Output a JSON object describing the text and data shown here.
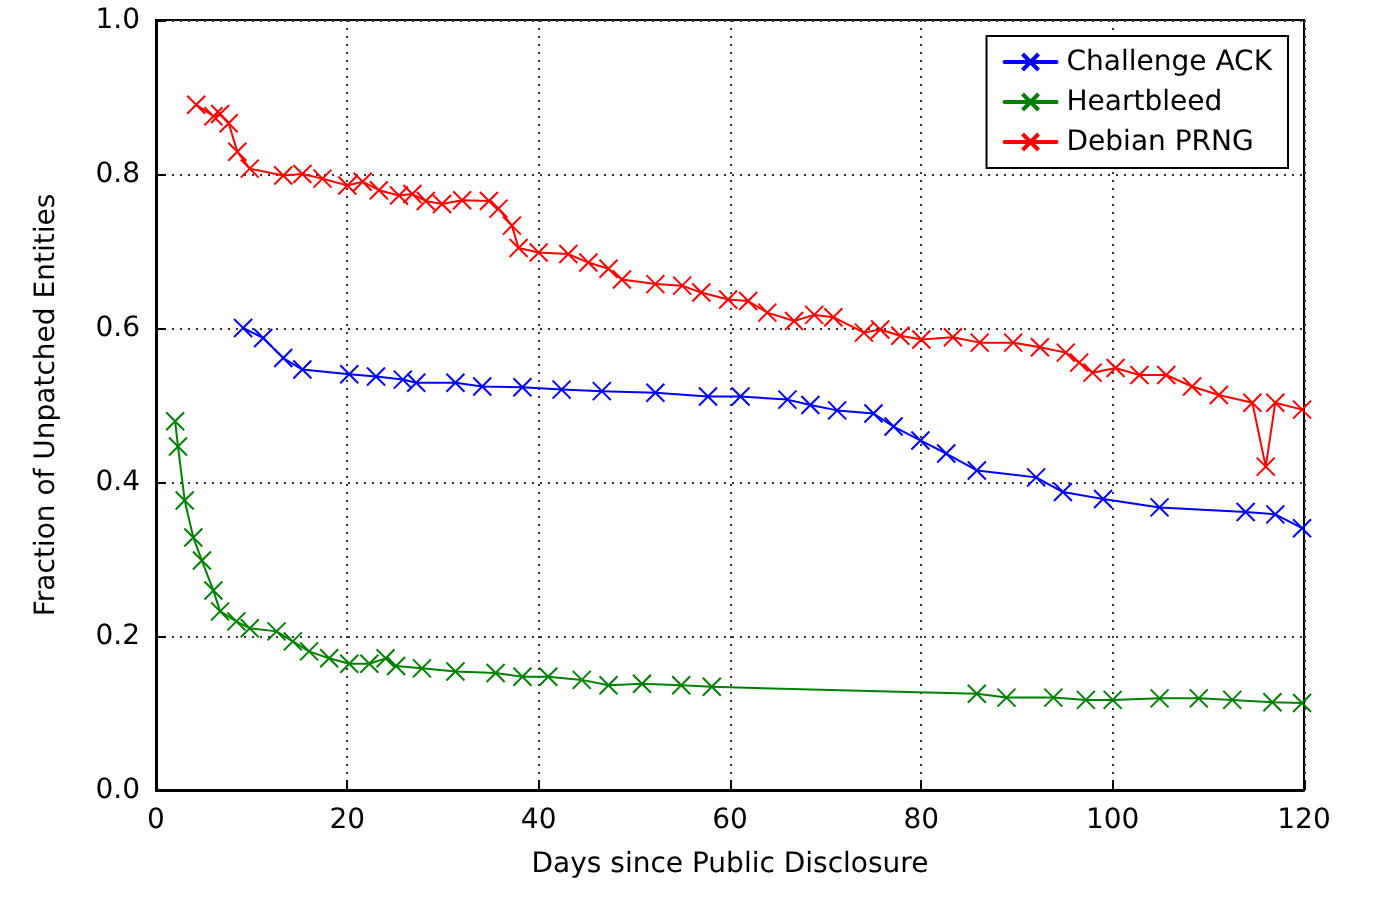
{
  "chart_data": {
    "type": "line",
    "xlabel": "Days since Public Disclosure",
    "ylabel": "Fraction of Unpatched Entities",
    "xlim": [
      0,
      120
    ],
    "xticks": [
      0,
      20,
      40,
      60,
      80,
      100,
      120
    ],
    "ylim": [
      0,
      1
    ],
    "yticks": [
      {
        "value": 0,
        "label": "0.0"
      },
      {
        "value": 0.2,
        "label": "0.2"
      },
      {
        "value": 0.4,
        "label": "0.4"
      },
      {
        "value": 0.6,
        "label": "0.6"
      },
      {
        "value": 0.8,
        "label": "0.8"
      },
      {
        "value": 1,
        "label": "1.0"
      }
    ],
    "grid": true,
    "legend": "top right",
    "line_style": "solid",
    "series": [
      {
        "name": "Challenge ACK",
        "color": "#0000ff",
        "marker": "cross",
        "x": [
          9.1,
          11.2,
          13.3,
          15.3,
          20.2,
          23,
          25.8,
          27.2,
          31.3,
          34.1,
          38.3,
          42.4,
          46.6,
          52.2,
          57.7,
          61.1,
          66,
          68.4,
          71.2,
          75,
          77.1,
          79.9,
          82.6,
          85.8,
          92,
          94.8,
          99,
          104.9,
          113.9,
          117,
          119.8
        ],
        "values": [
          0.6,
          0.587,
          0.561,
          0.546,
          0.54,
          0.537,
          0.533,
          0.529,
          0.529,
          0.524,
          0.523,
          0.52,
          0.518,
          0.516,
          0.511,
          0.511,
          0.507,
          0.5,
          0.493,
          0.489,
          0.472,
          0.454,
          0.437,
          0.415,
          0.406,
          0.387,
          0.378,
          0.367,
          0.361,
          0.358,
          0.34
        ]
      },
      {
        "name": "Heartbleed",
        "color": "#008000",
        "marker": "cross",
        "x": [
          2,
          2.3,
          3,
          3.9,
          4.8,
          6,
          6.7,
          8.4,
          9.8,
          12.6,
          14.3,
          16,
          18.1,
          20.2,
          22.3,
          24,
          25.1,
          27.8,
          31.3,
          35.5,
          38.3,
          41,
          44.5,
          47.3,
          50.8,
          54.9,
          58.1,
          85.8,
          88.9,
          93.8,
          97.2,
          100,
          104.9,
          109,
          112.5,
          116.7,
          119.8
        ],
        "values": [
          0.479,
          0.446,
          0.376,
          0.328,
          0.298,
          0.259,
          0.232,
          0.219,
          0.21,
          0.206,
          0.193,
          0.18,
          0.171,
          0.164,
          0.164,
          0.171,
          0.161,
          0.158,
          0.154,
          0.152,
          0.147,
          0.147,
          0.143,
          0.136,
          0.138,
          0.136,
          0.134,
          0.125,
          0.12,
          0.12,
          0.117,
          0.117,
          0.119,
          0.119,
          0.117,
          0.114,
          0.113
        ]
      },
      {
        "name": "Debian PRNG",
        "color": "#ff0000",
        "marker": "cross",
        "x": [
          4.2,
          6,
          6.7,
          7.6,
          8.5,
          9.8,
          13.3,
          15.3,
          17.4,
          20,
          21.6,
          23.3,
          25.4,
          26.8,
          28.2,
          29.9,
          32,
          34.8,
          35.8,
          37.2,
          37.9,
          40,
          43.1,
          45.2,
          47.3,
          48.7,
          52.2,
          55,
          57,
          59.8,
          61.9,
          63.9,
          66.7,
          68.8,
          70.8,
          74,
          75.7,
          77.8,
          80,
          83.3,
          86.1,
          89.6,
          92.4,
          95.1,
          96.5,
          97.9,
          100.3,
          102.8,
          105.6,
          108.3,
          111.1,
          114.6,
          116,
          117,
          119.8
        ],
        "values": [
          0.89,
          0.875,
          0.878,
          0.866,
          0.829,
          0.807,
          0.798,
          0.8,
          0.794,
          0.785,
          0.79,
          0.779,
          0.772,
          0.774,
          0.765,
          0.761,
          0.766,
          0.765,
          0.755,
          0.733,
          0.704,
          0.698,
          0.696,
          0.685,
          0.677,
          0.663,
          0.657,
          0.655,
          0.646,
          0.637,
          0.635,
          0.62,
          0.609,
          0.617,
          0.614,
          0.594,
          0.598,
          0.59,
          0.585,
          0.588,
          0.581,
          0.581,
          0.575,
          0.568,
          0.555,
          0.542,
          0.548,
          0.539,
          0.539,
          0.524,
          0.513,
          0.503,
          0.42,
          0.503,
          0.494
        ]
      }
    ]
  }
}
